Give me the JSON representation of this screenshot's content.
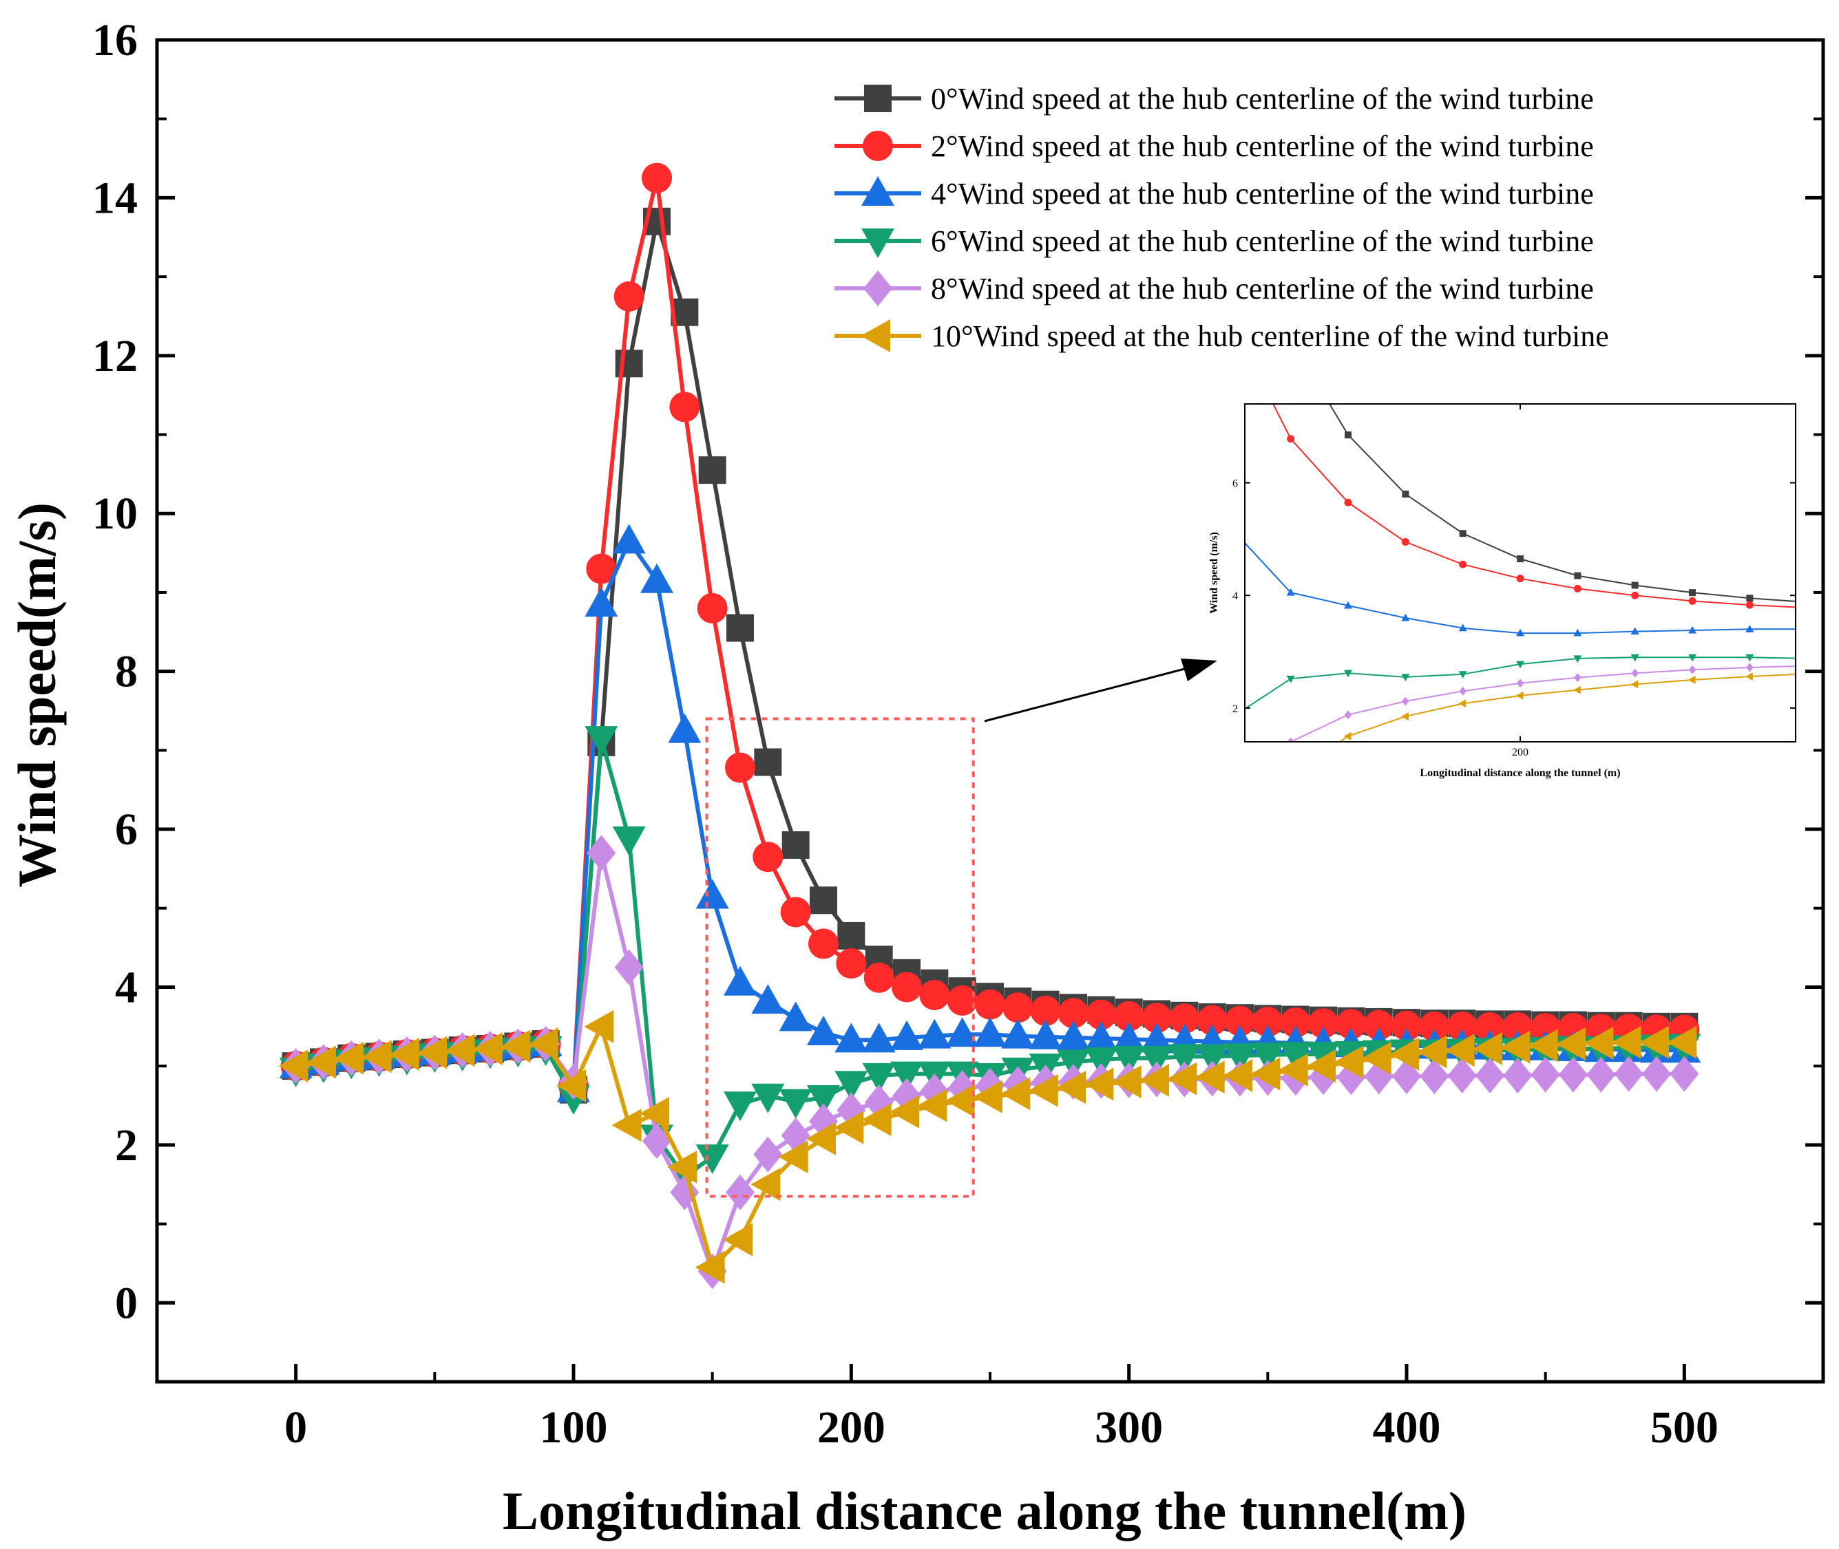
{
  "chart_data": {
    "type": "line",
    "title": "",
    "xlabel": "Longitudinal distance along the tunnel(m)",
    "ylabel": "Wind speed(m/s)",
    "xlim": [
      -50,
      550
    ],
    "ylim": [
      -1,
      16
    ],
    "xticks": [
      0,
      100,
      200,
      300,
      400,
      500
    ],
    "yticks": [
      0,
      2,
      4,
      6,
      8,
      10,
      12,
      14,
      16
    ],
    "legend_position": "top-right",
    "x": [
      0,
      10,
      20,
      30,
      40,
      50,
      60,
      70,
      80,
      90,
      100,
      110,
      120,
      130,
      140,
      150,
      160,
      170,
      180,
      190,
      200,
      210,
      220,
      230,
      240,
      250,
      260,
      270,
      280,
      290,
      300,
      310,
      320,
      330,
      340,
      350,
      360,
      370,
      380,
      390,
      400,
      410,
      420,
      430,
      440,
      450,
      460,
      470,
      480,
      490,
      500
    ],
    "series": [
      {
        "name": "0°Wind speed at the hub centerline of the wind turbine",
        "color": "#404040",
        "marker": "square",
        "values": [
          3.0,
          3.05,
          3.1,
          3.12,
          3.15,
          3.17,
          3.2,
          3.22,
          3.25,
          3.28,
          2.7,
          7.1,
          11.9,
          13.7,
          12.55,
          10.55,
          8.55,
          6.85,
          5.8,
          5.1,
          4.65,
          4.35,
          4.18,
          4.05,
          3.95,
          3.88,
          3.82,
          3.78,
          3.74,
          3.71,
          3.68,
          3.66,
          3.64,
          3.62,
          3.61,
          3.6,
          3.59,
          3.58,
          3.57,
          3.56,
          3.55,
          3.54,
          3.54,
          3.53,
          3.53,
          3.52,
          3.52,
          3.51,
          3.51,
          3.5,
          3.5
        ]
      },
      {
        "name": "2°Wind speed at the hub centerline of the wind turbine",
        "color": "#ff2a2a",
        "marker": "circle",
        "values": [
          3.0,
          3.05,
          3.1,
          3.12,
          3.15,
          3.17,
          3.2,
          3.22,
          3.25,
          3.28,
          2.75,
          9.3,
          12.75,
          14.25,
          11.35,
          8.8,
          6.78,
          5.65,
          4.95,
          4.55,
          4.3,
          4.12,
          4.0,
          3.9,
          3.83,
          3.78,
          3.74,
          3.7,
          3.67,
          3.65,
          3.63,
          3.61,
          3.6,
          3.58,
          3.57,
          3.56,
          3.55,
          3.54,
          3.53,
          3.52,
          3.51,
          3.5,
          3.5,
          3.49,
          3.49,
          3.48,
          3.48,
          3.47,
          3.47,
          3.46,
          3.46
        ]
      },
      {
        "name": "4°Wind speed at the hub centerline of the wind turbine",
        "color": "#1a6fe0",
        "marker": "triangle-up",
        "values": [
          3.0,
          3.05,
          3.1,
          3.12,
          3.15,
          3.17,
          3.2,
          3.22,
          3.25,
          3.28,
          2.7,
          8.85,
          9.65,
          9.15,
          7.25,
          5.15,
          4.05,
          3.82,
          3.6,
          3.42,
          3.33,
          3.33,
          3.36,
          3.38,
          3.4,
          3.4,
          3.38,
          3.37,
          3.36,
          3.35,
          3.34,
          3.33,
          3.32,
          3.31,
          3.3,
          3.3,
          3.29,
          3.28,
          3.27,
          3.27,
          3.26,
          3.25,
          3.25,
          3.24,
          3.23,
          3.23,
          3.22,
          3.21,
          3.21,
          3.2,
          3.2
        ]
      },
      {
        "name": "6°Wind speed at the hub centerline of the wind turbine",
        "color": "#14a06e",
        "marker": "triangle-down",
        "values": [
          2.95,
          3.0,
          3.05,
          3.08,
          3.1,
          3.13,
          3.15,
          3.18,
          3.2,
          3.22,
          2.6,
          7.15,
          5.88,
          2.1,
          1.6,
          1.85,
          2.52,
          2.62,
          2.55,
          2.6,
          2.78,
          2.88,
          2.9,
          2.9,
          2.9,
          2.88,
          2.95,
          3.0,
          3.05,
          3.08,
          3.1,
          3.1,
          3.12,
          3.12,
          3.13,
          3.14,
          3.15,
          3.15,
          3.16,
          3.17,
          3.18,
          3.18,
          3.19,
          3.2,
          3.2,
          3.21,
          3.22,
          3.22,
          3.23,
          3.24,
          3.25
        ]
      },
      {
        "name": "8°Wind speed at the hub centerline of the wind turbine",
        "color": "#c88ce6",
        "marker": "diamond",
        "values": [
          3.0,
          3.05,
          3.1,
          3.12,
          3.15,
          3.17,
          3.2,
          3.22,
          3.25,
          3.28,
          2.8,
          5.7,
          4.25,
          2.05,
          1.4,
          0.4,
          1.4,
          1.88,
          2.12,
          2.3,
          2.44,
          2.54,
          2.62,
          2.68,
          2.72,
          2.75,
          2.77,
          2.79,
          2.8,
          2.81,
          2.82,
          2.83,
          2.83,
          2.84,
          2.84,
          2.85,
          2.85,
          2.86,
          2.86,
          2.87,
          2.87,
          2.87,
          2.88,
          2.88,
          2.88,
          2.89,
          2.89,
          2.89,
          2.9,
          2.9,
          2.9
        ]
      },
      {
        "name": "10°Wind speed at the hub centerline of the wind turbine",
        "color": "#daa006",
        "marker": "triangle-left",
        "values": [
          3.0,
          3.05,
          3.1,
          3.12,
          3.15,
          3.17,
          3.2,
          3.22,
          3.25,
          3.28,
          2.75,
          3.5,
          2.25,
          2.4,
          1.72,
          0.45,
          0.8,
          1.5,
          1.85,
          2.08,
          2.22,
          2.32,
          2.42,
          2.5,
          2.56,
          2.61,
          2.65,
          2.69,
          2.73,
          2.77,
          2.8,
          2.82,
          2.84,
          2.86,
          2.88,
          2.9,
          2.95,
          3.0,
          3.05,
          3.1,
          3.15,
          3.18,
          3.2,
          3.22,
          3.24,
          3.26,
          3.28,
          3.29,
          3.3,
          3.3,
          3.3
        ]
      }
    ],
    "inset": {
      "xlabel": "Longitudinal distance along the tunnel (m)",
      "ylabel": "Wind speed (m/s)",
      "xlim": [
        152,
        248
      ],
      "ylim": [
        1.4,
        7.4
      ],
      "xticks": [
        200
      ],
      "yticks": [
        2,
        4,
        6
      ]
    },
    "zoom_region": {
      "x_range": [
        148,
        244
      ],
      "y_range": [
        1.35,
        7.4
      ]
    }
  }
}
